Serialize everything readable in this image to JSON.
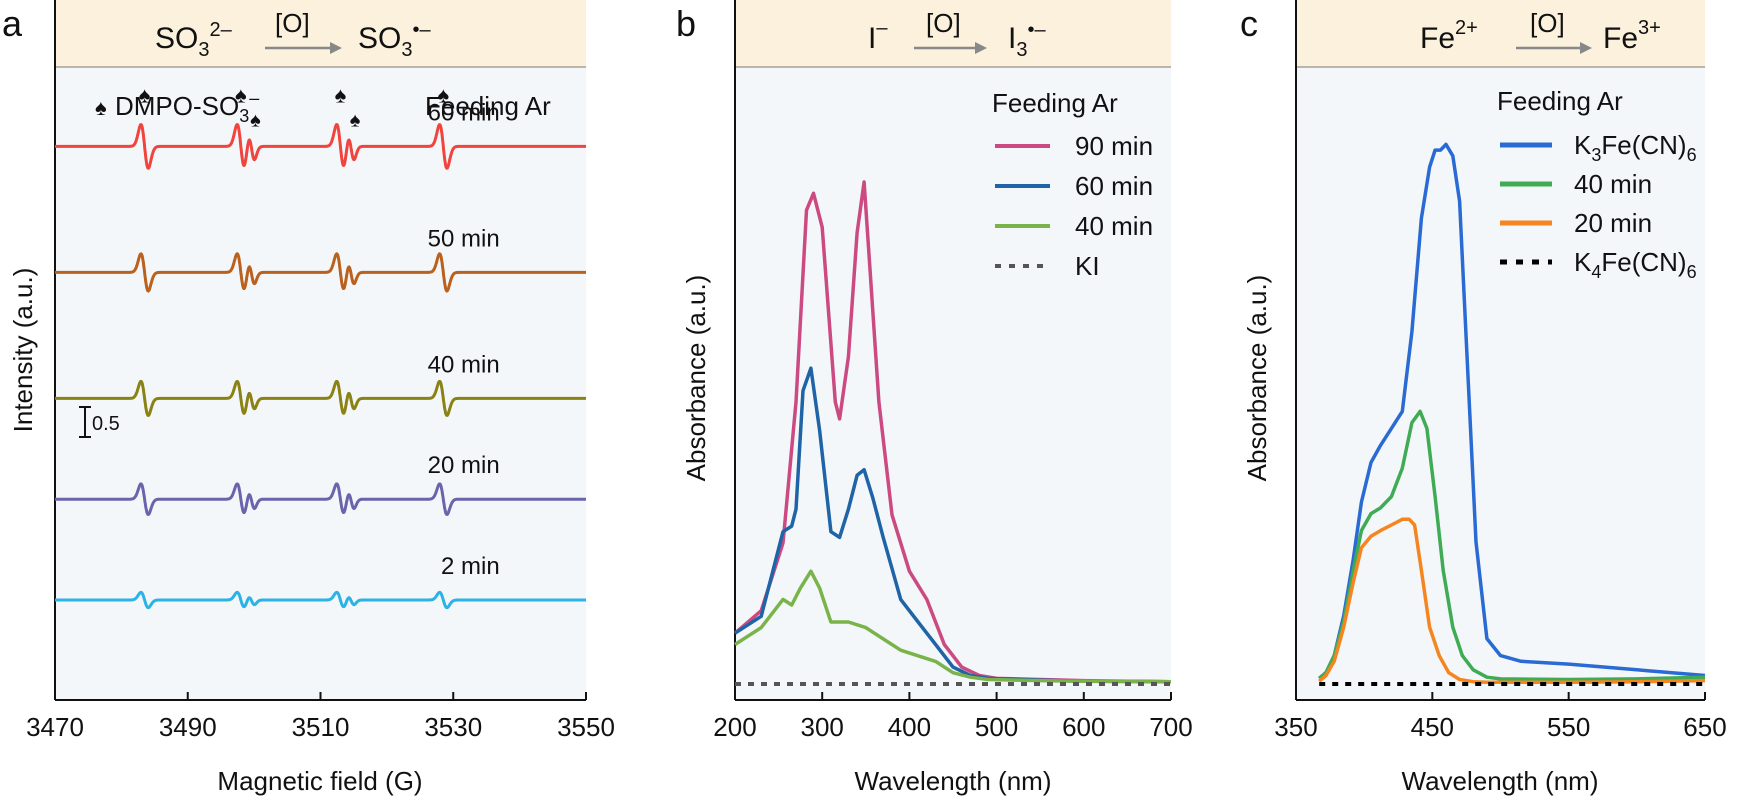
{
  "panels": {
    "a": {
      "letter": "a",
      "reaction": {
        "reactant": "SO",
        "reactant_sub": "3",
        "reactant_sup": "2–",
        "oxidant": "[O]",
        "product": "SO",
        "product_sub": "3",
        "product_sup": "•–"
      },
      "annotation_marker": "♠",
      "annotation_label": "DMPO-SO",
      "annotation_sub": "3",
      "annotation_sup": "–",
      "condition": "Feeding Ar",
      "scale_bar": "0.5"
    },
    "b": {
      "letter": "b",
      "reaction": {
        "reactant": "I",
        "reactant_sup": "–",
        "oxidant": "[O]",
        "product": "I",
        "product_sub": "3",
        "product_sup": "•–"
      },
      "legend_title": "Feeding Ar"
    },
    "c": {
      "letter": "c",
      "reaction": {
        "reactant": "Fe",
        "reactant_sup": "2+",
        "oxidant": "[O]",
        "product": "Fe",
        "product_sup": "3+"
      },
      "legend_title": "Feeding Ar",
      "legend_sub_k3": "3",
      "legend_sub_k3_tail": "Fe(CN)",
      "legend_sub_k3_end": "6",
      "legend_sub_k4": "4",
      "legend_sub_k4_tail": "Fe(CN)",
      "legend_sub_k4_end": "6"
    }
  },
  "chart_data": [
    {
      "type": "line",
      "id": "a",
      "title": "",
      "xlabel": "Magnetic field (G)",
      "ylabel": "Intensity (a.u.)",
      "xlim": [
        3470,
        3550
      ],
      "xticks": [
        "3470",
        "3490",
        "3510",
        "3530",
        "3550"
      ],
      "xtick_values": [
        3470,
        3490,
        3510,
        3530,
        3550
      ],
      "peak_centers": [
        3483.5,
        3498.0,
        3513.0,
        3528.5
      ],
      "satellite_centers": [
        3499.6,
        3514.6
      ],
      "series": [
        {
          "name": "60 min",
          "label": "60 min",
          "color": "#f0443f",
          "amplitude": 1.0,
          "offset": 4.0
        },
        {
          "name": "50 min",
          "label": "50 min",
          "color": "#b9611d",
          "amplitude": 0.85,
          "offset": 3.0
        },
        {
          "name": "40 min",
          "label": "40 min",
          "color": "#8a8215",
          "amplitude": 0.78,
          "offset": 2.0
        },
        {
          "name": "20 min",
          "label": "20 min",
          "color": "#6b64ad",
          "amplitude": 0.7,
          "offset": 1.2
        },
        {
          "name": "2 min",
          "label": "2 min",
          "color": "#2bb2e6",
          "amplitude": 0.35,
          "offset": 0.4
        }
      ]
    },
    {
      "type": "line",
      "id": "b",
      "xlabel": "Wavelength (nm)",
      "ylabel": "Absorbance (a.u.)",
      "xlim": [
        200,
        700
      ],
      "ylim": [
        0,
        1.0
      ],
      "xticks": [
        "200",
        "300",
        "400",
        "500",
        "600",
        "700"
      ],
      "xtick_values": [
        200,
        300,
        400,
        500,
        600,
        700
      ],
      "series": [
        {
          "name": "90 min",
          "label": "90 min",
          "color": "#cc4a82",
          "dashed": false,
          "x": [
            200,
            230,
            255,
            270,
            282,
            290,
            300,
            315,
            320,
            330,
            340,
            348,
            355,
            365,
            380,
            400,
            420,
            440,
            460,
            480,
            500,
            550,
            600,
            650,
            700
          ],
          "y": [
            0.09,
            0.13,
            0.25,
            0.5,
            0.84,
            0.87,
            0.81,
            0.5,
            0.47,
            0.58,
            0.8,
            0.89,
            0.73,
            0.5,
            0.3,
            0.2,
            0.15,
            0.07,
            0.03,
            0.015,
            0.01,
            0.008,
            0.006,
            0.005,
            0.004
          ]
        },
        {
          "name": "60 min",
          "label": "60 min",
          "color": "#1e64a6",
          "dashed": false,
          "x": [
            200,
            230,
            255,
            265,
            270,
            278,
            287,
            297,
            310,
            320,
            330,
            340,
            348,
            358,
            370,
            390,
            410,
            430,
            450,
            470,
            490,
            550,
            600,
            700
          ],
          "y": [
            0.09,
            0.12,
            0.27,
            0.28,
            0.31,
            0.52,
            0.56,
            0.45,
            0.27,
            0.26,
            0.31,
            0.37,
            0.38,
            0.33,
            0.26,
            0.15,
            0.11,
            0.07,
            0.03,
            0.015,
            0.01,
            0.007,
            0.005,
            0.004
          ]
        },
        {
          "name": "40 min",
          "label": "40 min",
          "color": "#7ab34a",
          "dashed": false,
          "x": [
            200,
            230,
            255,
            265,
            275,
            287,
            297,
            310,
            330,
            350,
            370,
            390,
            410,
            430,
            450,
            470,
            490,
            550,
            600,
            700
          ],
          "y": [
            0.07,
            0.1,
            0.15,
            0.14,
            0.17,
            0.2,
            0.17,
            0.11,
            0.11,
            0.1,
            0.08,
            0.06,
            0.05,
            0.04,
            0.02,
            0.012,
            0.008,
            0.006,
            0.005,
            0.004
          ]
        },
        {
          "name": "KI",
          "label": "KI",
          "color": "#555555",
          "dashed": true,
          "x": [
            200,
            700
          ],
          "y": [
            0.0,
            0.0
          ]
        }
      ]
    },
    {
      "type": "line",
      "id": "c",
      "xlabel": "Wavelength (nm)",
      "ylabel": "Absorbance (a.u.)",
      "xlim": [
        350,
        650
      ],
      "ylim": [
        0,
        1.0
      ],
      "xticks": [
        "350",
        "450",
        "550",
        "650"
      ],
      "xtick_values": [
        350,
        450,
        550,
        650
      ],
      "series": [
        {
          "name": "K3Fe(CN)6",
          "label": "K",
          "sub": "3",
          "tail": "Fe(CN)",
          "end": "6",
          "color": "#2a6bd3",
          "dashed": false,
          "x": [
            367,
            372,
            378,
            385,
            392,
            398,
            405,
            412,
            420,
            428,
            435,
            442,
            448,
            452,
            456,
            460,
            465,
            470,
            475,
            482,
            490,
            500,
            515,
            550,
            600,
            650
          ],
          "y": [
            0.01,
            0.02,
            0.05,
            0.12,
            0.22,
            0.32,
            0.39,
            0.42,
            0.45,
            0.48,
            0.62,
            0.82,
            0.91,
            0.94,
            0.94,
            0.95,
            0.93,
            0.85,
            0.6,
            0.25,
            0.08,
            0.05,
            0.04,
            0.035,
            0.025,
            0.015
          ]
        },
        {
          "name": "40 min",
          "label": "40 min",
          "color": "#3fac55",
          "dashed": false,
          "x": [
            367,
            372,
            378,
            385,
            392,
            398,
            405,
            412,
            420,
            428,
            435,
            441,
            446,
            452,
            458,
            465,
            472,
            480,
            490,
            500,
            550,
            600,
            650
          ],
          "y": [
            0.01,
            0.02,
            0.05,
            0.11,
            0.2,
            0.27,
            0.3,
            0.31,
            0.33,
            0.38,
            0.46,
            0.48,
            0.45,
            0.33,
            0.2,
            0.1,
            0.05,
            0.025,
            0.012,
            0.009,
            0.008,
            0.009,
            0.012
          ]
        },
        {
          "name": "20 min",
          "label": "20 min",
          "color": "#f5861f",
          "dashed": false,
          "x": [
            367,
            372,
            378,
            385,
            392,
            398,
            405,
            412,
            420,
            428,
            433,
            437,
            442,
            448,
            455,
            462,
            470,
            480,
            490,
            550,
            600,
            650
          ],
          "y": [
            0.005,
            0.015,
            0.04,
            0.1,
            0.18,
            0.24,
            0.26,
            0.27,
            0.28,
            0.29,
            0.29,
            0.28,
            0.2,
            0.1,
            0.05,
            0.02,
            0.008,
            0.004,
            0.003,
            0.003,
            0.004,
            0.006
          ]
        },
        {
          "name": "K4Fe(CN)6",
          "label": "K",
          "sub": "4",
          "tail": "Fe(CN)",
          "end": "6",
          "color": "#000000",
          "dashed": true,
          "x": [
            367,
            650
          ],
          "y": [
            0.0,
            0.0
          ]
        }
      ]
    }
  ]
}
